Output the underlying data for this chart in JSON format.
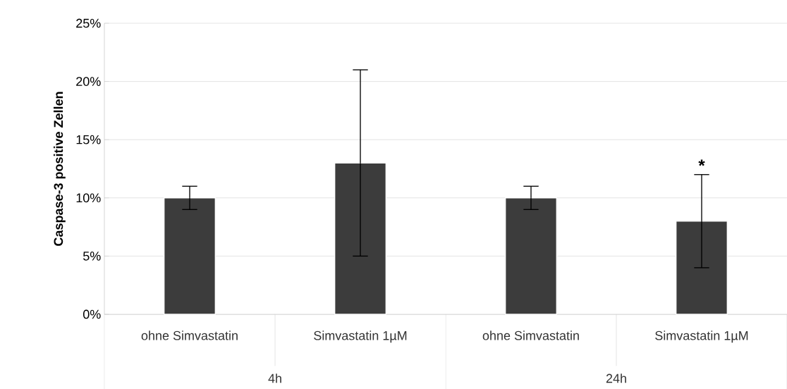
{
  "chart_data": {
    "type": "bar",
    "ylabel": "Caspase-3 positive Zellen",
    "categories": [
      "ohne Simvastatin",
      "Simvastatin 1µM",
      "ohne Simvastatin",
      "Simvastatin 1µM"
    ],
    "values": [
      10,
      13,
      10,
      8
    ],
    "errors": [
      1,
      8,
      1,
      4
    ],
    "color": "#3c3c3c",
    "ylim": [
      0,
      25
    ],
    "yticks": [
      {
        "value": 0,
        "label": "0%"
      },
      {
        "value": 5,
        "label": "5%"
      },
      {
        "value": 10,
        "label": "10%"
      },
      {
        "value": 15,
        "label": "15%"
      },
      {
        "value": 20,
        "label": "20%"
      },
      {
        "value": 25,
        "label": "25%"
      }
    ],
    "grid": "y",
    "annotations": [
      "*",
      "4h",
      "24h"
    ]
  }
}
